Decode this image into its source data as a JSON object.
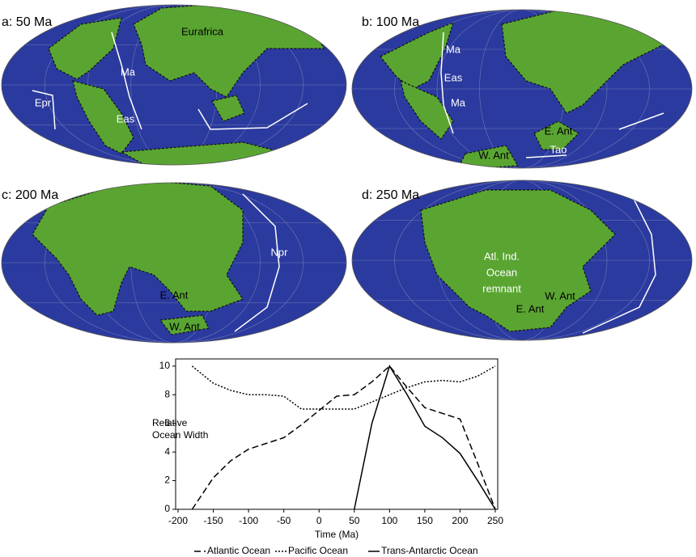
{
  "maps": [
    {
      "title": "a: 50 Ma",
      "labels": [
        {
          "text": "Eurafrica",
          "color": "#000000"
        },
        {
          "text": "Ma",
          "color": "#ffffff"
        },
        {
          "text": "Epr",
          "color": "#ffffff"
        },
        {
          "text": "Eas",
          "color": "#ffffff"
        }
      ]
    },
    {
      "title": "b: 100 Ma",
      "labels": [
        {
          "text": "Ma",
          "color": "#ffffff"
        },
        {
          "text": "Eas",
          "color": "#ffffff"
        },
        {
          "text": "Ma",
          "color": "#ffffff"
        },
        {
          "text": "E. Ant",
          "color": "#000000"
        },
        {
          "text": "W. Ant",
          "color": "#000000"
        },
        {
          "text": "Tao",
          "color": "#ffffff"
        }
      ]
    },
    {
      "title": "c: 200 Ma",
      "labels": [
        {
          "text": "Npr",
          "color": "#ffffff"
        },
        {
          "text": "E. Ant",
          "color": "#000000"
        },
        {
          "text": "W. Ant",
          "color": "#000000"
        }
      ]
    },
    {
      "title": "d: 250 Ma",
      "labels": [
        {
          "text": "Atl. Ind.",
          "color": "#ffffff"
        },
        {
          "text": "Ocean",
          "color": "#ffffff"
        },
        {
          "text": "remnant",
          "color": "#ffffff"
        },
        {
          "text": "W. Ant",
          "color": "#000000"
        },
        {
          "text": "E. Ant",
          "color": "#000000"
        }
      ]
    }
  ],
  "chart_data": {
    "type": "line",
    "x_label": "Time (Ma)",
    "y_label": "Relative Ocean Width",
    "x": [
      -180,
      -150,
      -125,
      -100,
      -75,
      -50,
      -25,
      0,
      25,
      50,
      75,
      100,
      125,
      150,
      175,
      200,
      225,
      250
    ],
    "series": [
      {
        "name": "Atlantic Ocean",
        "color": "#000000",
        "style": "dashed",
        "values": [
          0,
          2.2,
          3.4,
          4.2,
          4.6,
          5.0,
          5.9,
          6.9,
          7.9,
          8.0,
          8.9,
          10,
          8.5,
          7.1,
          6.7,
          6.3,
          3.2,
          0
        ]
      },
      {
        "name": "Pacific Ocean",
        "color": "#000000",
        "style": "dotted",
        "values": [
          10,
          8.8,
          8.3,
          8.0,
          8.0,
          7.9,
          7.0,
          7.0,
          7.0,
          7.0,
          7.5,
          8.0,
          8.5,
          8.9,
          9.0,
          8.9,
          9.3,
          10
        ]
      },
      {
        "name": "Trans-Antarctic Ocean",
        "color": "#000000",
        "style": "solid",
        "values": [
          null,
          null,
          null,
          null,
          null,
          null,
          null,
          null,
          null,
          0,
          6.0,
          10,
          8.0,
          5.8,
          5.0,
          3.9,
          2.0,
          0
        ]
      }
    ],
    "xlim": [
      -200,
      250
    ],
    "ylim": [
      0,
      10.5
    ],
    "xticks": [
      -200,
      -150,
      -100,
      -50,
      0,
      50,
      100,
      150,
      200,
      250
    ],
    "yticks": [
      0,
      2,
      4,
      6,
      8,
      10
    ]
  }
}
